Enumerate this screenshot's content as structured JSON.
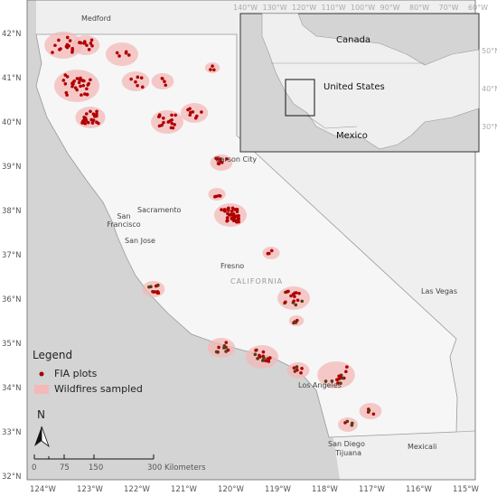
{
  "map": {
    "cities": [
      "Medford",
      "Carson City",
      "Sacramento",
      "San Francisco",
      "San Jose",
      "Fresno",
      "CALIFORNIA",
      "Las Vegas",
      "Los Angeles",
      "San Diego",
      "Tijuana",
      "Mexicali"
    ],
    "lat_labels": [
      "42°N",
      "41°N",
      "40°N",
      "39°N",
      "38°N",
      "37°N",
      "36°N",
      "35°N",
      "34°N",
      "33°N",
      "32°N"
    ],
    "lon_labels": [
      "124°W",
      "123°W",
      "122°W",
      "121°W",
      "120°W",
      "119°W",
      "118°W",
      "117°W",
      "116°W",
      "115°W"
    ],
    "inset": {
      "countries": [
        "Canada",
        "United States",
        "Mexico"
      ],
      "lon_labels": [
        "140°W",
        "130°W",
        "120°W",
        "110°W",
        "100°W",
        "90°W",
        "80°W",
        "70°W",
        "60°W"
      ],
      "lat_labels": [
        "50°N",
        "40°N",
        "30°N"
      ]
    },
    "legend": {
      "title": "Legend",
      "items": [
        "FIA plots",
        "Wildfires sampled"
      ]
    },
    "north": "N",
    "scale": {
      "ticks": [
        "0",
        "75",
        "150",
        "300"
      ],
      "unit": "Kilometers"
    }
  }
}
